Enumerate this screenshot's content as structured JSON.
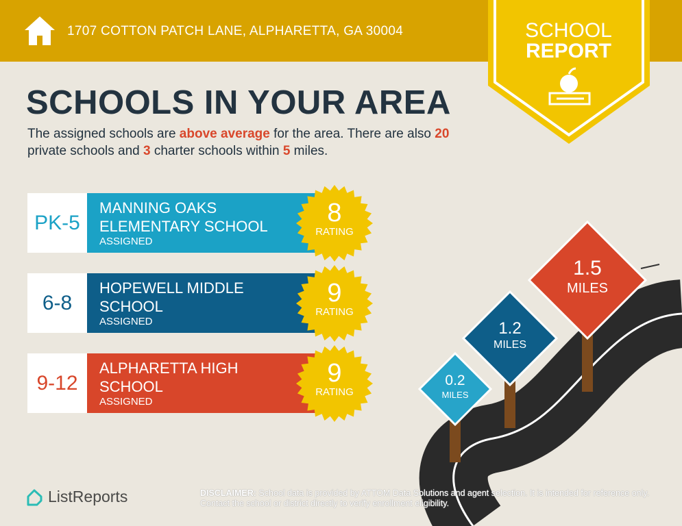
{
  "header": {
    "address": "1707 COTTON PATCH LANE, ALPHARETTA, GA 30004",
    "icon": "house-icon"
  },
  "banner": {
    "line1": "SCHOOL",
    "line2": "REPORT",
    "icon": "apple-books-icon"
  },
  "title": "SCHOOLS IN YOUR AREA",
  "intro": {
    "p1": "The assigned schools are ",
    "h1": "above average",
    "p2": " for the area. There are also ",
    "h2": "20",
    "p3": " private schools and ",
    "h3": "3",
    "p4": " charter schools within ",
    "h4": "5",
    "p5": " miles."
  },
  "schools": [
    {
      "grade": "PK-5",
      "name1": "MANNING OAKS",
      "name2": "ELEMENTARY SCHOOL",
      "status": "ASSIGNED",
      "rating": "8",
      "rating_label": "RATING",
      "color": "#1ba2c6"
    },
    {
      "grade": "6-8",
      "name1": "HOPEWELL MIDDLE",
      "name2": "SCHOOL",
      "status": "ASSIGNED",
      "rating": "9",
      "rating_label": "RATING",
      "color": "#0e5e89"
    },
    {
      "grade": "9-12",
      "name1": "ALPHARETTA HIGH",
      "name2": "SCHOOL",
      "status": "ASSIGNED",
      "rating": "9",
      "rating_label": "RATING",
      "color": "#d8462a"
    }
  ],
  "signs": [
    {
      "distance": "0.2",
      "unit": "MILES",
      "color": "#27a4c9"
    },
    {
      "distance": "1.2",
      "unit": "MILES",
      "color": "#0e5e89"
    },
    {
      "distance": "1.5",
      "unit": "MILES",
      "color": "#d8462a"
    }
  ],
  "logo": {
    "text": "ListReports",
    "color": "#2bbcb5"
  },
  "disclaimer": {
    "label": "DISCLAIMER:",
    "text": " School data is provided by ATTOM Data Solutions and agent selection. It is intended for reference only. Contact the school or district directly to verify enrollment eligibility."
  },
  "colors": {
    "header": "#d8a300",
    "banner": "#f2c500",
    "background": "#ebe7de",
    "title": "#233340",
    "highlight": "#d9472b"
  }
}
